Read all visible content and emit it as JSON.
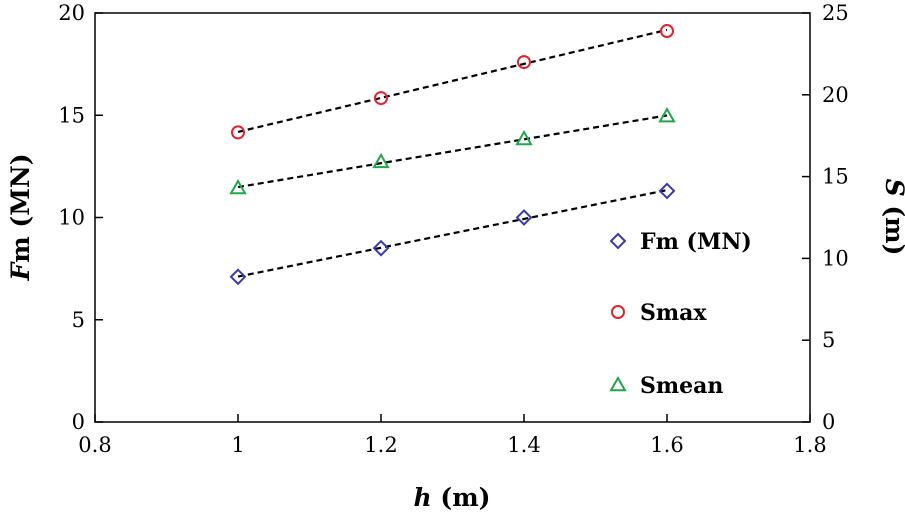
{
  "chart_data": {
    "type": "scatter",
    "x": [
      1.0,
      1.2,
      1.4,
      1.6
    ],
    "x_axis": {
      "label_var": "h",
      "label_unit": " (m)",
      "range": [
        0.8,
        1.8
      ],
      "ticks": [
        0.8,
        1,
        1.2,
        1.4,
        1.6,
        1.8
      ],
      "tick_labels": [
        "0.8",
        "1",
        "1.2",
        "1.4",
        "1.6",
        "1.8"
      ]
    },
    "y_left": {
      "label_var": "F",
      "label_sub": "m",
      "label_unit": " (MN)",
      "range": [
        0,
        20
      ],
      "ticks": [
        0,
        5,
        10,
        15,
        20
      ],
      "tick_labels": [
        "0",
        "5",
        "10",
        "15",
        "20"
      ]
    },
    "y_right": {
      "label_var": "S",
      "label_unit": " (m)",
      "range": [
        0,
        25
      ],
      "ticks": [
        0,
        5,
        10,
        15,
        20,
        25
      ],
      "tick_labels": [
        "0",
        "5",
        "10",
        "15",
        "20",
        "25"
      ]
    },
    "series": [
      {
        "name": "Fm (MN)",
        "axis": "left",
        "marker": "diamond",
        "color": "#3a3aa8",
        "values": [
          7.1,
          8.5,
          10.0,
          11.3
        ],
        "trendline": true
      },
      {
        "name": "Smax",
        "axis": "right",
        "marker": "circle",
        "color": "#e8202a",
        "values": [
          17.7,
          19.8,
          22.0,
          23.9
        ],
        "trendline": true
      },
      {
        "name": "Smean",
        "axis": "right",
        "marker": "triangle",
        "color": "#1fa84a",
        "values": [
          14.3,
          15.9,
          17.3,
          18.7
        ],
        "trendline": true
      }
    ],
    "trendline_style": {
      "color": "#000000",
      "dash": "dashed"
    },
    "legend_position": "right-center",
    "grid": false
  }
}
